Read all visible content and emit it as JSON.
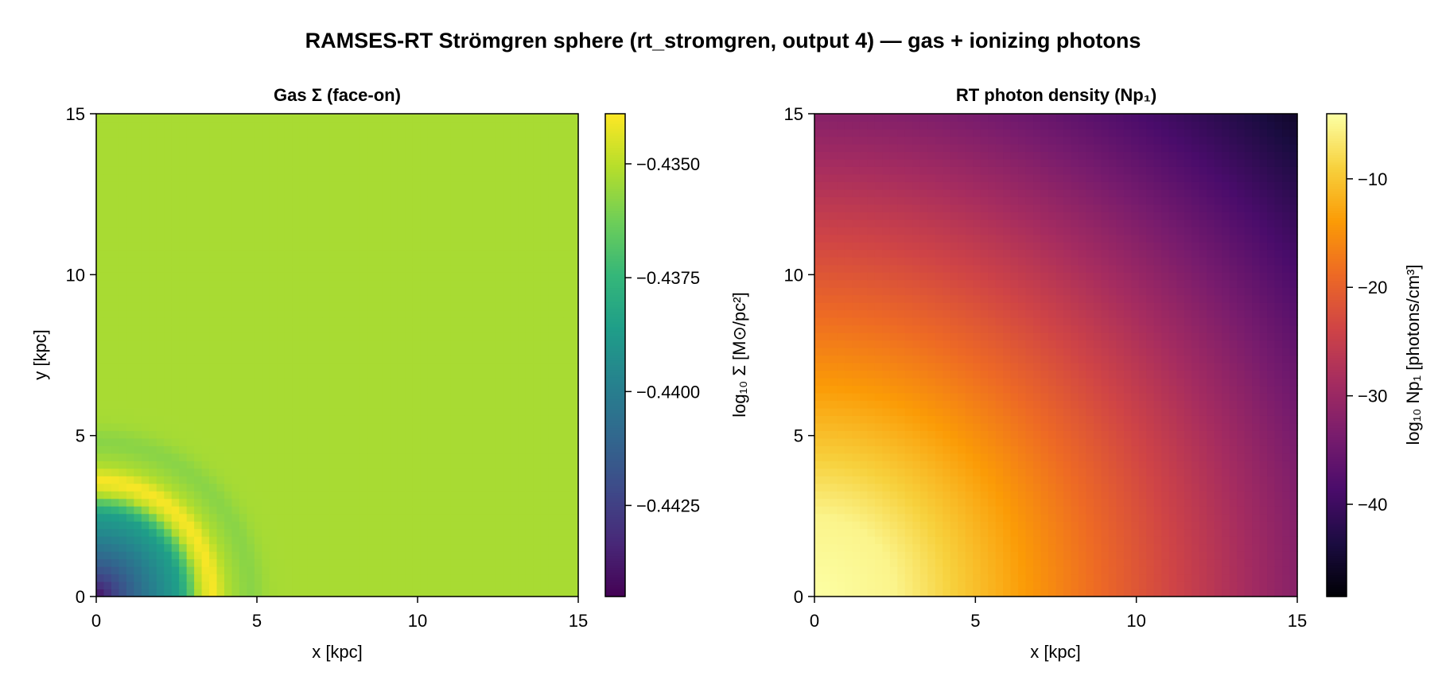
{
  "title": "RAMSES-RT Strömgren sphere (rt_stromgren, output 4) — gas + ionizing photons",
  "colors": {
    "viridis": [
      "#440154",
      "#482878",
      "#3e4a89",
      "#31688e",
      "#26828e",
      "#1f9e89",
      "#35b779",
      "#6ece58",
      "#b5de2b",
      "#fde725"
    ],
    "inferno": [
      "#000004",
      "#1b0c41",
      "#4a0c6b",
      "#781c6d",
      "#a52c60",
      "#cf4446",
      "#ed6925",
      "#fb9b06",
      "#f7d13d",
      "#fcffa4"
    ]
  },
  "chart_data": [
    {
      "type": "heatmap",
      "title": "Gas Σ (face-on)",
      "xlabel": "x [kpc]",
      "ylabel": "y [kpc]",
      "xlim": [
        0,
        15
      ],
      "ylim": [
        0,
        15
      ],
      "xticks": [
        "0",
        "5",
        "10",
        "15"
      ],
      "yticks": [
        "0",
        "5",
        "10",
        "15"
      ],
      "colormap": "viridis",
      "colorbar": {
        "label": "log₁₀ Σ [M⊙/pc²]",
        "range": [
          -0.4445,
          -0.4339
        ],
        "ticks": [
          "−0.4350",
          "−0.4375",
          "−0.4400",
          "−0.4425"
        ],
        "tick_values": [
          -0.435,
          -0.4375,
          -0.44,
          -0.4425
        ]
      },
      "field": {
        "grid_cells": 64,
        "background_value": -0.4353,
        "center_value": -0.4445,
        "core_radius_kpc": 2.6,
        "core_edge_value": -0.4385,
        "shell_radius_kpc": 3.6,
        "shell_width_kpc": 0.7,
        "shell_peak_value": -0.434,
        "outer_dip_radius_kpc": 4.8,
        "outer_dip_value": -0.4358
      }
    },
    {
      "type": "heatmap",
      "title": "RT photon density (Np₁)",
      "xlabel": "x [kpc]",
      "ylabel": "",
      "xlim": [
        0,
        15
      ],
      "ylim": [
        0,
        15
      ],
      "xticks": [
        "0",
        "5",
        "10",
        "15"
      ],
      "yticks": [
        "0",
        "5",
        "10",
        "15"
      ],
      "colormap": "inferno",
      "colorbar": {
        "label": "log₁₀ Np₁ [photons/cm³]",
        "range": [
          -48.5,
          -4
        ],
        "ticks": [
          "−10",
          "−20",
          "−30",
          "−40"
        ],
        "tick_values": [
          -10,
          -20,
          -30,
          -40
        ]
      },
      "field": {
        "grid_cells": 64,
        "center_value": -4,
        "plateau_radius_kpc": 2.5,
        "falloff_per_kpc": 2.15,
        "corner_value": -48.5
      }
    }
  ]
}
